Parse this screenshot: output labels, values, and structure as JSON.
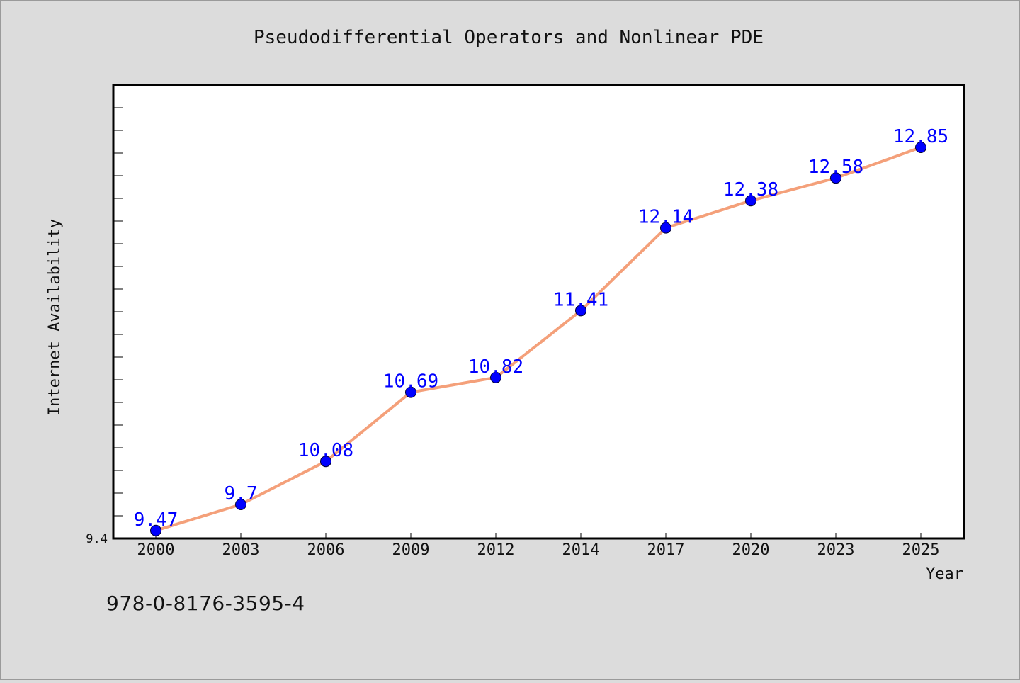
{
  "chart_data": {
    "type": "line",
    "title": "Pseudodifferential Operators and Nonlinear PDE",
    "xlabel": "Year",
    "ylabel": "Internet Availability",
    "categories": [
      "2000",
      "2003",
      "2006",
      "2009",
      "2012",
      "2014",
      "2017",
      "2020",
      "2023",
      "2025"
    ],
    "series": [
      {
        "values": [
          9.47,
          9.7,
          10.08,
          10.69,
          10.82,
          11.41,
          12.14,
          12.38,
          12.58,
          12.85
        ]
      }
    ],
    "data_labels": [
      "9.47",
      "9.7",
      "10.08",
      "10.69",
      "10.82",
      "11.41",
      "12.14",
      "12.38",
      "12.58",
      "12.85"
    ],
    "y_tick_labels": [
      "9.4"
    ],
    "ylim": [
      9.4,
      13.4
    ],
    "grid": false,
    "legend": "none",
    "colors": {
      "line": "#f4a07a",
      "marker": "#0000ff",
      "data_label": "#0000ff",
      "plot_background": "#ffffff",
      "page_background": "#dcdcdc"
    }
  },
  "footer": {
    "isbn": "978-0-8176-3595-4"
  }
}
